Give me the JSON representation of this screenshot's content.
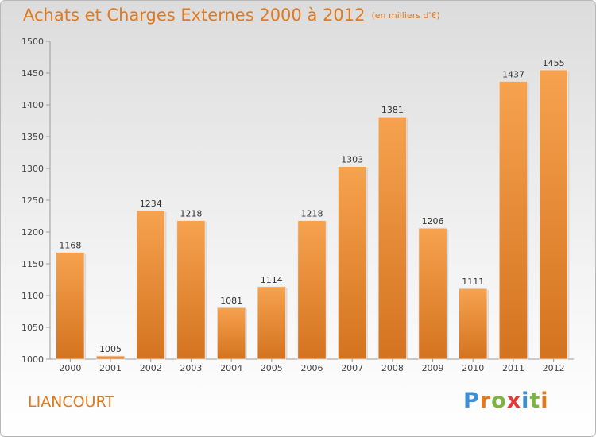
{
  "header": {
    "title": "Achats et Charges Externes 2000 à 2012",
    "unit": "(en milliers d'€)"
  },
  "footer": {
    "commune": "LIANCOURT",
    "logo_text": "Proxiti"
  },
  "colors": {
    "accent": "#e07a20",
    "bar_top": "#f6a24f",
    "bar_bottom": "#d4731f"
  },
  "chart_data": {
    "type": "bar",
    "title": "Achats et Charges Externes 2000 à 2012",
    "subtitle": "(en milliers d'€)",
    "categories": [
      "2000",
      "2001",
      "2002",
      "2003",
      "2004",
      "2005",
      "2006",
      "2007",
      "2008",
      "2009",
      "2010",
      "2011",
      "2012"
    ],
    "values": [
      1168,
      1005,
      1234,
      1218,
      1081,
      1114,
      1218,
      1303,
      1381,
      1206,
      1111,
      1437,
      1455
    ],
    "ylim": [
      1000,
      1500
    ],
    "yticks": [
      1000,
      1050,
      1100,
      1150,
      1200,
      1250,
      1300,
      1350,
      1400,
      1450,
      1500
    ],
    "grid": false,
    "legend": "none"
  }
}
